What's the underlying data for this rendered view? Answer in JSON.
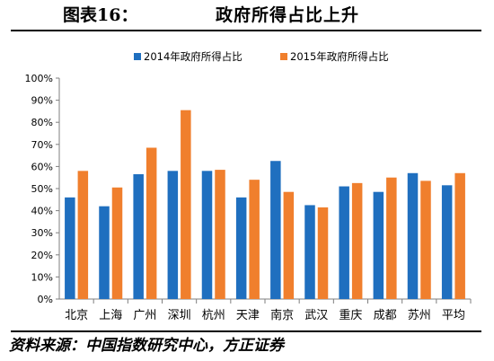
{
  "figure": {
    "label": "图表16：",
    "title": "政府所得占比上升",
    "source": "资料来源：中国指数研究中心，方正证券"
  },
  "chart_data": {
    "type": "bar",
    "categories": [
      "北京",
      "上海",
      "广州",
      "深圳",
      "杭州",
      "天津",
      "南京",
      "武汉",
      "重庆",
      "成都",
      "苏州",
      "平均"
    ],
    "series": [
      {
        "name": "2014年政府所得占比",
        "color": "#1f6fbf",
        "values": [
          46,
          42,
          56.5,
          58,
          58,
          46,
          62.5,
          42.5,
          51,
          48.5,
          57,
          51.5
        ]
      },
      {
        "name": "2015年政府所得占比",
        "color": "#f07f2d",
        "values": [
          58,
          50.5,
          68.5,
          85.5,
          58.5,
          54,
          48.5,
          41.5,
          52.5,
          55,
          53.5,
          57
        ]
      }
    ],
    "yticks": [
      "0%",
      "10%",
      "20%",
      "30%",
      "40%",
      "50%",
      "60%",
      "70%",
      "80%",
      "90%",
      "100%"
    ],
    "ylim": [
      0,
      100
    ],
    "legend_position": "top",
    "grid": false
  }
}
